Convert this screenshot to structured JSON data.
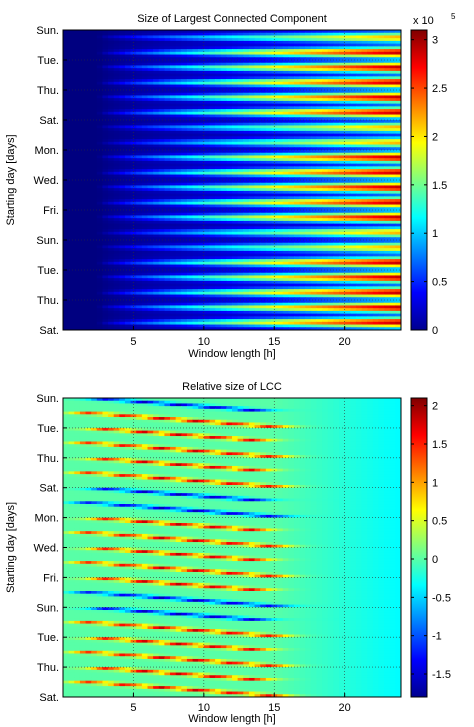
{
  "chart_data": [
    {
      "type": "heatmap",
      "title": "Size of Largest Connected Component",
      "xlabel": "Window length [h]",
      "ylabel": "Starting day [days]",
      "xlim": [
        0,
        24
      ],
      "ylim_labels_top_to_bottom": [
        "Sun.",
        "Tue.",
        "Thu.",
        "Sat.",
        "Mon.",
        "Wed.",
        "Fri.",
        "Sun.",
        "Tue.",
        "Thu.",
        "Sat."
      ],
      "x_ticks": [
        "5",
        "10",
        "15",
        "20"
      ],
      "colorbar": {
        "min": 0,
        "max": 3.1,
        "multiplier": "x 10",
        "multiplier_exponent": "5",
        "ticks": [
          "3",
          "2.5",
          "2",
          "1.5",
          "1",
          "0.5",
          "0"
        ]
      },
      "grid": true,
      "colormap": "jet"
    },
    {
      "type": "heatmap",
      "title": "Relative size of LCC",
      "xlabel": "Window length [h]",
      "ylabel": "Starting day [days]",
      "xlim": [
        0,
        24
      ],
      "ylim_labels_top_to_bottom": [
        "Sun.",
        "Tue.",
        "Thu.",
        "Sat.",
        "Mon.",
        "Wed.",
        "Fri.",
        "Sun.",
        "Tue.",
        "Thu.",
        "Sat."
      ],
      "x_ticks": [
        "5",
        "10",
        "15",
        "20"
      ],
      "colorbar": {
        "min": -1.8,
        "max": 2.1,
        "ticks": [
          "2",
          "1.5",
          "1",
          "0.5",
          "0",
          "-0.5",
          "-1",
          "-1.5"
        ]
      },
      "grid": true,
      "colormap": "jet"
    }
  ]
}
